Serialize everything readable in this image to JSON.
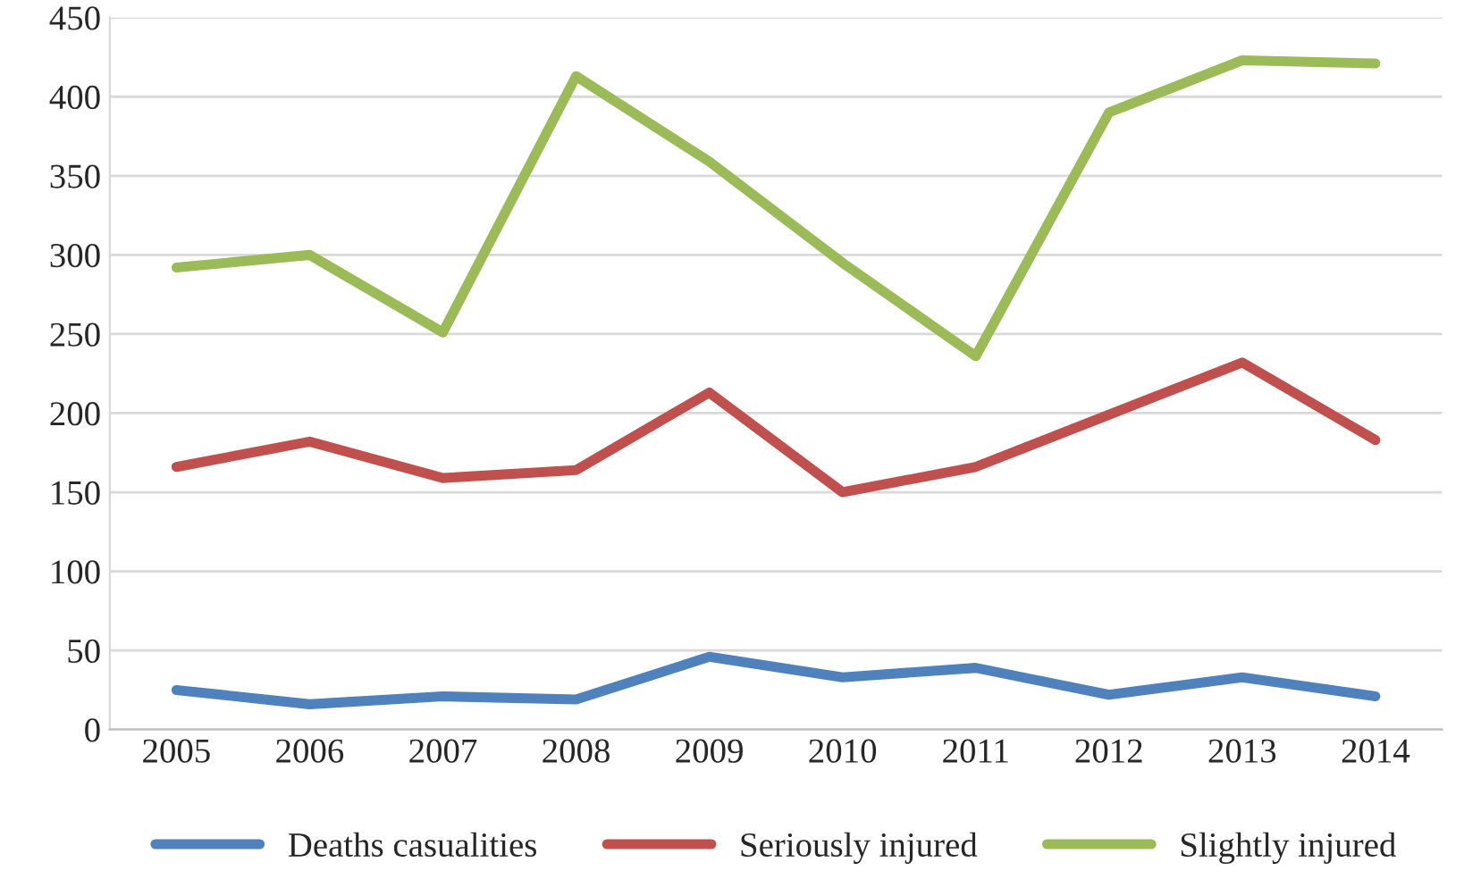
{
  "chart_data": {
    "type": "line",
    "categories": [
      "2005",
      "2006",
      "2007",
      "2008",
      "2009",
      "2010",
      "2011",
      "2012",
      "2013",
      "2014"
    ],
    "series": [
      {
        "name": "Deaths casualities",
        "color": "#4f81bd",
        "values": [
          25,
          16,
          21,
          19,
          46,
          33,
          39,
          22,
          33,
          21
        ]
      },
      {
        "name": "Seriously injured",
        "color": "#c0504d",
        "values": [
          166,
          182,
          159,
          164,
          213,
          150,
          166,
          199,
          232,
          183
        ]
      },
      {
        "name": "Slightly injured",
        "color": "#9bbb59",
        "values": [
          292,
          300,
          251,
          413,
          359,
          295,
          236,
          390,
          423,
          421
        ]
      }
    ],
    "ylim": [
      0,
      450
    ],
    "yticks": [
      0,
      50,
      100,
      150,
      200,
      250,
      300,
      350,
      400,
      450
    ],
    "grid": "y",
    "legend": "bottom",
    "marker": "none",
    "line_style": "solid"
  }
}
